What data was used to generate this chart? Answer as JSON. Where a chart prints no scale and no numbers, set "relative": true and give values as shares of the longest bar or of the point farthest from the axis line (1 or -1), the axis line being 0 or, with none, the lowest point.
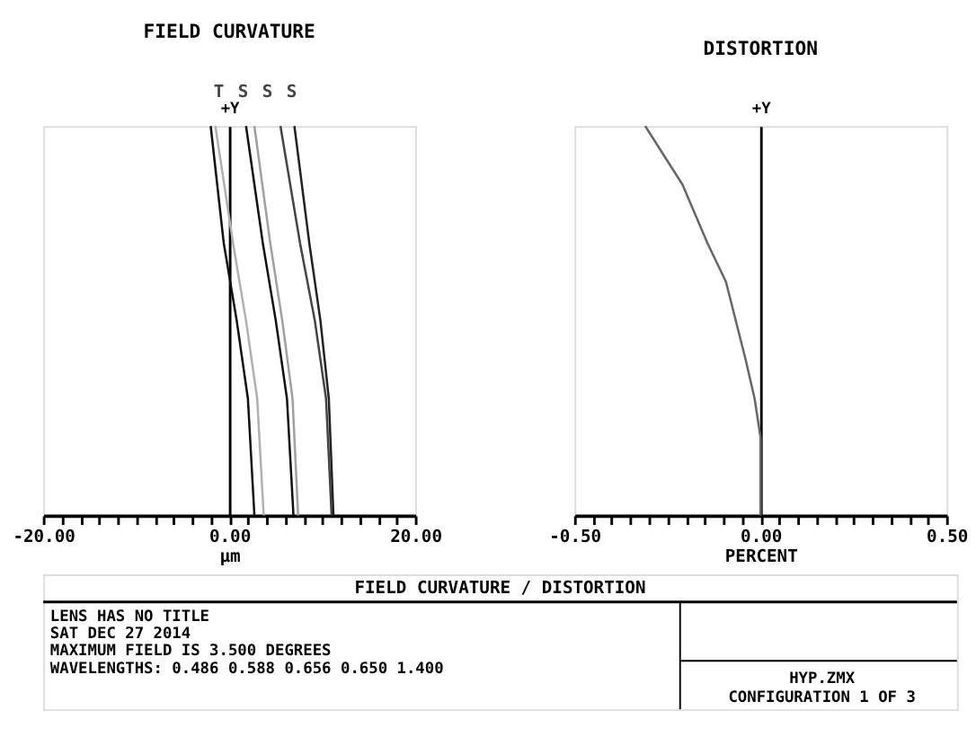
{
  "chart_data": [
    {
      "type": "line",
      "title": "FIELD CURVATURE",
      "xlabel": "µm",
      "ylabel": "+Y",
      "relative": true,
      "annotations": [
        "T",
        "S",
        "S",
        "S"
      ],
      "xlim": [
        -20,
        20
      ],
      "xticks": [
        {
          "value": -20,
          "label": "-20.00"
        },
        {
          "value": -18,
          "label": null
        },
        {
          "value": -16,
          "label": null
        },
        {
          "value": -14,
          "label": null
        },
        {
          "value": -12,
          "label": null
        },
        {
          "value": -10,
          "label": null
        },
        {
          "value": -8,
          "label": null
        },
        {
          "value": -6,
          "label": null
        },
        {
          "value": -4,
          "label": null
        },
        {
          "value": -2,
          "label": null
        },
        {
          "value": 0,
          "label": "0.00"
        },
        {
          "value": 2,
          "label": null
        },
        {
          "value": 4,
          "label": null
        },
        {
          "value": 6,
          "label": null
        },
        {
          "value": 8,
          "label": null
        },
        {
          "value": 10,
          "label": null
        },
        {
          "value": 12,
          "label": null
        },
        {
          "value": 14,
          "label": null
        },
        {
          "value": 16,
          "label": null
        },
        {
          "value": 18,
          "label": null
        },
        {
          "value": 20,
          "label": "20.00"
        }
      ],
      "tick_labels": "x",
      "series": [
        {
          "color": "#111111",
          "x": [
            2.7,
            2.0,
            0.8,
            -0.6,
            -2.0
          ],
          "values": [
            0,
            0.3,
            0.5,
            0.7,
            1
          ]
        },
        {
          "color": "#b0b0b0",
          "x": [
            3.7,
            3.0,
            1.8,
            0.4,
            -1.5
          ],
          "values": [
            0,
            0.3,
            0.5,
            0.7,
            1
          ]
        },
        {
          "color": "#111111",
          "x": [
            6.9,
            6.2,
            5.0,
            3.6,
            1.8
          ],
          "values": [
            0,
            0.3,
            0.5,
            0.7,
            1
          ]
        },
        {
          "color": "#a0a0a0",
          "x": [
            7.4,
            6.8,
            5.7,
            4.4,
            2.7
          ],
          "values": [
            0,
            0.3,
            0.5,
            0.7,
            1
          ]
        },
        {
          "color": "#444444",
          "x": [
            11.0,
            10.4,
            9.2,
            7.6,
            5.5
          ],
          "values": [
            0,
            0.3,
            0.5,
            0.7,
            1
          ]
        },
        {
          "color": "#222222",
          "x": [
            11.2,
            10.7,
            9.8,
            8.6,
            7.0
          ],
          "values": [
            0,
            0.3,
            0.5,
            0.7,
            1
          ]
        }
      ]
    },
    {
      "type": "line",
      "title": "DISTORTION",
      "xlabel": "PERCENT",
      "ylabel": "+Y",
      "relative": true,
      "xlim": [
        -0.5,
        0.5
      ],
      "xticks": [
        {
          "value": -0.5,
          "label": "-0.50"
        },
        {
          "value": -0.45,
          "label": null
        },
        {
          "value": -0.4,
          "label": null
        },
        {
          "value": -0.35,
          "label": null
        },
        {
          "value": -0.3,
          "label": null
        },
        {
          "value": -0.25,
          "label": null
        },
        {
          "value": -0.2,
          "label": null
        },
        {
          "value": -0.15,
          "label": null
        },
        {
          "value": -0.1,
          "label": null
        },
        {
          "value": -0.05,
          "label": null
        },
        {
          "value": 0,
          "label": "0.00"
        },
        {
          "value": 0.05,
          "label": null
        },
        {
          "value": 0.1,
          "label": null
        },
        {
          "value": 0.15,
          "label": null
        },
        {
          "value": 0.2,
          "label": null
        },
        {
          "value": 0.25,
          "label": null
        },
        {
          "value": 0.3,
          "label": null
        },
        {
          "value": 0.35,
          "label": null
        },
        {
          "value": 0.4,
          "label": null
        },
        {
          "value": 0.45,
          "label": null
        },
        {
          "value": 0.5,
          "label": "0.50"
        }
      ],
      "tick_labels": "x",
      "series": [
        {
          "color": "#666666",
          "x": [
            0,
            0,
            -0.016,
            -0.04,
            -0.093,
            -0.143,
            -0.21,
            -0.31
          ],
          "values": [
            0,
            0.2,
            0.3,
            0.4,
            0.6,
            0.7,
            0.85,
            1
          ]
        }
      ]
    },
    {
      "type": "other",
      "title": "FIELD CURVATURE / DISTORTION",
      "annotations": [
        "LENS HAS NO TITLE",
        "SAT DEC 27 2014",
        "MAXIMUM FIELD IS 3.500 DEGREES",
        "WAVELENGTHS: 0.486 0.588 0.656 0.650 1.400",
        "HYP.ZMX",
        "CONFIGURATION 1 OF 3"
      ]
    }
  ]
}
